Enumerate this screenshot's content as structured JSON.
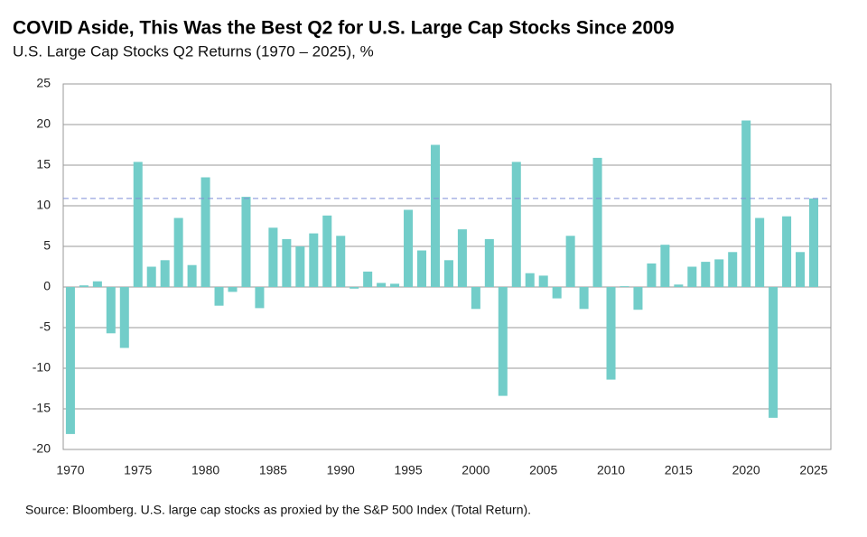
{
  "chart_data": {
    "type": "bar",
    "title": "COVID Aside, This Was the Best Q2 for U.S. Large Cap Stocks Since 2009",
    "subtitle": "U.S. Large Cap Stocks Q2 Returns (1970 – 2025), %",
    "source": "Source: Bloomberg. U.S. large cap stocks as proxied by the S&P 500 Index (Total Return).",
    "x": [
      1970,
      1971,
      1972,
      1973,
      1974,
      1975,
      1976,
      1977,
      1978,
      1979,
      1980,
      1981,
      1982,
      1983,
      1984,
      1985,
      1986,
      1987,
      1988,
      1989,
      1990,
      1991,
      1992,
      1993,
      1994,
      1995,
      1996,
      1997,
      1998,
      1999,
      2000,
      2001,
      2002,
      2003,
      2004,
      2005,
      2006,
      2007,
      2008,
      2009,
      2010,
      2011,
      2012,
      2013,
      2014,
      2015,
      2016,
      2017,
      2018,
      2019,
      2020,
      2021,
      2022,
      2023,
      2024,
      2025
    ],
    "values": [
      -18.1,
      0.2,
      0.7,
      -5.7,
      -7.5,
      15.4,
      2.5,
      3.3,
      8.5,
      2.7,
      13.5,
      -2.3,
      -0.6,
      11.1,
      -2.6,
      7.3,
      5.9,
      5.0,
      6.6,
      8.8,
      6.3,
      -0.2,
      1.9,
      0.5,
      0.4,
      9.5,
      4.5,
      17.5,
      3.3,
      7.1,
      -2.7,
      5.9,
      -13.4,
      15.4,
      1.7,
      1.4,
      -1.4,
      6.3,
      -2.7,
      15.9,
      -11.4,
      0.1,
      -2.8,
      2.9,
      5.2,
      0.3,
      2.5,
      3.1,
      3.4,
      4.3,
      20.5,
      8.5,
      -16.1,
      8.7,
      4.3,
      10.9
    ],
    "color": "#72cdc9",
    "reference_line": 10.9,
    "reference_color": "#7f8fd8",
    "xlim": [
      1969.47,
      2026.27
    ],
    "xticks": [
      1970,
      1975,
      1980,
      1985,
      1990,
      1995,
      2000,
      2005,
      2010,
      2015,
      2020,
      2025
    ],
    "ylim": [
      -20,
      25
    ],
    "yticks": [
      -20,
      -15,
      -10,
      -5,
      0,
      5,
      10,
      15,
      20,
      25
    ],
    "grid": true
  }
}
